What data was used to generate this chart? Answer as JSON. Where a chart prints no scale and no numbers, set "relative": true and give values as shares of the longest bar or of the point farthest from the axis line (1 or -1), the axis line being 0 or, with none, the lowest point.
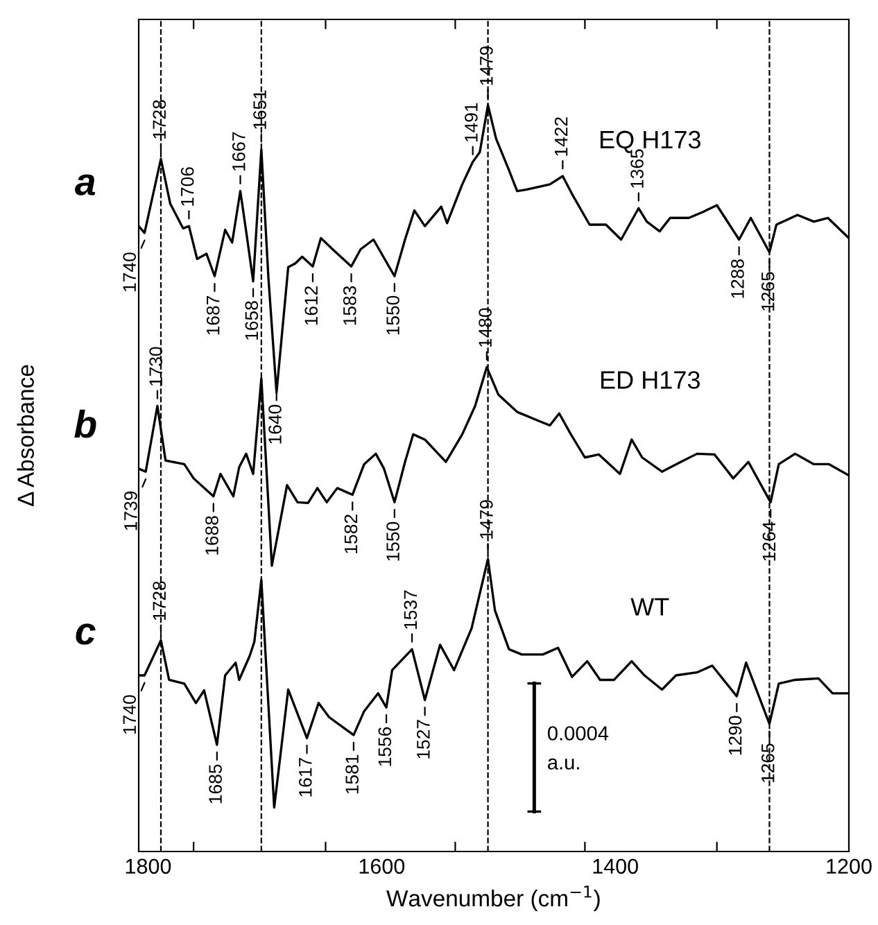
{
  "chart_data": {
    "type": "line",
    "relative": true,
    "xlabel": "Wavenumber (cm$^{−1}$)",
    "ylabel": "Δ Absorbance",
    "xlim": [
      1808,
      1200
    ],
    "xticks": [
      1800,
      {
        "value": 1761,
        "label": null
      },
      {
        "value": 1648,
        "label": null
      },
      1600,
      {
        "value": 1537,
        "label": null
      },
      {
        "value": 1426,
        "label": null
      },
      1400,
      {
        "value": 1313,
        "label": null
      },
      1200
    ],
    "line_style": "solid",
    "series": [
      {
        "name": "EQ H173",
        "color": "#000000",
        "x": [
          1808,
          1803,
          1789,
          1781,
          1770,
          1765,
          1758,
          1750,
          1743,
          1734,
          1728,
          1721,
          1716,
          1710,
          1703,
          1697,
          1690,
          1680,
          1674,
          1668,
          1659,
          1652,
          1642,
          1626,
          1618,
          1607,
          1589,
          1580,
          1572,
          1563,
          1549,
          1544,
          1531,
          1522,
          1516,
          1509,
          1502,
          1491,
          1484,
          1476,
          1456,
          1445,
          1437,
          1422,
          1408,
          1395,
          1380,
          1373,
          1362,
          1353,
          1337,
          1325,
          1313,
          1294,
          1284,
          1268,
          1262,
          1244,
          1230,
          1218,
          1200
        ],
        "values": [
          0.838,
          0.829,
          0.928,
          0.868,
          0.835,
          0.838,
          0.794,
          0.801,
          0.771,
          0.833,
          0.816,
          0.885,
          0.831,
          0.764,
          0.941,
          0.77,
          0.615,
          0.783,
          0.788,
          0.797,
          0.784,
          0.822,
          0.807,
          0.784,
          0.807,
          0.82,
          0.771,
          0.82,
          0.859,
          0.838,
          0.864,
          0.842,
          0.894,
          0.924,
          0.937,
          1.0,
          0.955,
          0.913,
          0.885,
          0.887,
          0.894,
          0.905,
          0.881,
          0.84,
          0.84,
          0.82,
          0.862,
          0.844,
          0.831,
          0.849,
          0.849,
          0.857,
          0.866,
          0.82,
          0.849,
          0.803,
          0.84,
          0.853,
          0.844,
          0.849,
          0.822
        ]
      },
      {
        "name": "ED H173",
        "color": "#000000",
        "x": [
          1808,
          1802,
          1792,
          1785,
          1769,
          1761,
          1744,
          1738,
          1727,
          1722,
          1716,
          1710,
          1703,
          1694,
          1681,
          1672,
          1663,
          1655,
          1647,
          1638,
          1625,
          1615,
          1605,
          1598,
          1589,
          1580,
          1573,
          1563,
          1545,
          1531,
          1520,
          1510,
          1500,
          1484,
          1467,
          1456,
          1448,
          1438,
          1426,
          1414,
          1396,
          1386,
          1377,
          1360,
          1344,
          1330,
          1315,
          1299,
          1286,
          1267,
          1260,
          1246,
          1230,
          1217,
          1200
        ],
        "values": [
          0.513,
          0.509,
          0.597,
          0.524,
          0.519,
          0.5,
          0.476,
          0.506,
          0.476,
          0.515,
          0.533,
          0.506,
          0.634,
          0.383,
          0.491,
          0.468,
          0.467,
          0.487,
          0.468,
          0.487,
          0.478,
          0.519,
          0.533,
          0.513,
          0.468,
          0.522,
          0.559,
          0.552,
          0.522,
          0.559,
          0.597,
          0.649,
          0.612,
          0.589,
          0.578,
          0.571,
          0.587,
          0.559,
          0.528,
          0.532,
          0.506,
          0.552,
          0.528,
          0.509,
          0.522,
          0.533,
          0.532,
          0.5,
          0.522,
          0.468,
          0.519,
          0.533,
          0.519,
          0.519,
          0.504
        ]
      },
      {
        "name": "WT",
        "color": "#000000",
        "x": [
          1808,
          1803,
          1789,
          1782,
          1769,
          1759,
          1752,
          1741,
          1734,
          1725,
          1722,
          1713,
          1709,
          1703,
          1692,
          1680,
          1664,
          1654,
          1645,
          1624,
          1615,
          1603,
          1596,
          1591,
          1574,
          1563,
          1550,
          1538,
          1523,
          1509,
          1503,
          1491,
          1480,
          1462,
          1449,
          1437,
          1424,
          1413,
          1401,
          1386,
          1375,
          1360,
          1348,
          1330,
          1317,
          1296,
          1288,
          1268,
          1260,
          1246,
          1226,
          1214,
          1200
        ],
        "values": [
          0.236,
          0.236,
          0.283,
          0.23,
          0.225,
          0.199,
          0.216,
          0.143,
          0.236,
          0.253,
          0.23,
          0.262,
          0.281,
          0.364,
          0.059,
          0.217,
          0.152,
          0.199,
          0.18,
          0.156,
          0.188,
          0.212,
          0.193,
          0.243,
          0.271,
          0.203,
          0.277,
          0.243,
          0.299,
          0.392,
          0.323,
          0.271,
          0.264,
          0.264,
          0.273,
          0.234,
          0.255,
          0.23,
          0.23,
          0.255,
          0.236,
          0.217,
          0.236,
          0.24,
          0.249,
          0.208,
          0.253,
          0.171,
          0.225,
          0.23,
          0.232,
          0.212,
          0.212
        ]
      }
    ],
    "ref_lines": [
      {
        "axis": "x",
        "value": 1789,
        "color": "#000000",
        "line_style": "dashed"
      },
      {
        "axis": "x",
        "value": 1703,
        "color": "#000000",
        "line_style": "dashed"
      },
      {
        "axis": "x",
        "value": 1509,
        "color": "#000000",
        "line_style": "dashed"
      },
      {
        "axis": "x",
        "value": 1268,
        "color": "#000000",
        "line_style": "dashed"
      }
    ],
    "annotations": [
      "0.0004",
      "a.u.",
      "a",
      "b",
      "c",
      {
        "text": "1740",
        "x": 1803,
        "y": 0.819
      },
      {
        "text": "1728",
        "x": 1789,
        "y": 0.938
      },
      {
        "text": "1706",
        "x": 1765,
        "y": 0.848
      },
      {
        "text": "1687",
        "x": 1743,
        "y": 0.761
      },
      {
        "text": "1667",
        "x": 1721,
        "y": 0.895
      },
      {
        "text": "1658",
        "x": 1710,
        "y": 0.754
      },
      {
        "text": "1651",
        "x": 1703,
        "y": 0.951
      },
      {
        "text": "1640",
        "x": 1690,
        "y": 0.615
      },
      {
        "text": "1612",
        "x": 1659,
        "y": 0.774
      },
      {
        "text": "1583",
        "x": 1626,
        "y": 0.774
      },
      {
        "text": "1550",
        "x": 1589,
        "y": 0.761
      },
      {
        "text": "1491",
        "x": 1522,
        "y": 0.934
      },
      {
        "text": "1479",
        "x": 1509,
        "y": 1.01
      },
      {
        "text": "1422",
        "x": 1445,
        "y": 0.915
      },
      {
        "text": "1365",
        "x": 1380,
        "y": 0.872
      },
      {
        "text": "1288",
        "x": 1294,
        "y": 0.81
      },
      {
        "text": "1265",
        "x": 1268,
        "y": 0.793
      },
      {
        "text": "1739",
        "x": 1802,
        "y": 0.499
      },
      {
        "text": "1730",
        "x": 1792,
        "y": 0.607
      },
      {
        "text": "1688",
        "x": 1744,
        "y": 0.466
      },
      {
        "text": "1582",
        "x": 1625,
        "y": 0.468
      },
      {
        "text": "1550",
        "x": 1589,
        "y": 0.458
      },
      {
        "text": "1480",
        "x": 1510,
        "y": 0.659
      },
      {
        "text": "1264",
        "x": 1267,
        "y": 0.458
      },
      {
        "text": "1740",
        "x": 1803,
        "y": 0.226
      },
      {
        "text": "1728",
        "x": 1789,
        "y": 0.293
      },
      {
        "text": "1685",
        "x": 1741,
        "y": 0.133
      },
      {
        "text": "1617",
        "x": 1664,
        "y": 0.142
      },
      {
        "text": "1581",
        "x": 1624,
        "y": 0.146
      },
      {
        "text": "1556",
        "x": 1596,
        "y": 0.183
      },
      {
        "text": "1537",
        "x": 1574,
        "y": 0.281
      },
      {
        "text": "1527",
        "x": 1563,
        "y": 0.193
      },
      {
        "text": "1479",
        "x": 1509,
        "y": 0.402
      },
      {
        "text": "1290",
        "x": 1296,
        "y": 0.198
      },
      {
        "text": "1265",
        "x": 1268,
        "y": 0.161
      }
    ]
  }
}
